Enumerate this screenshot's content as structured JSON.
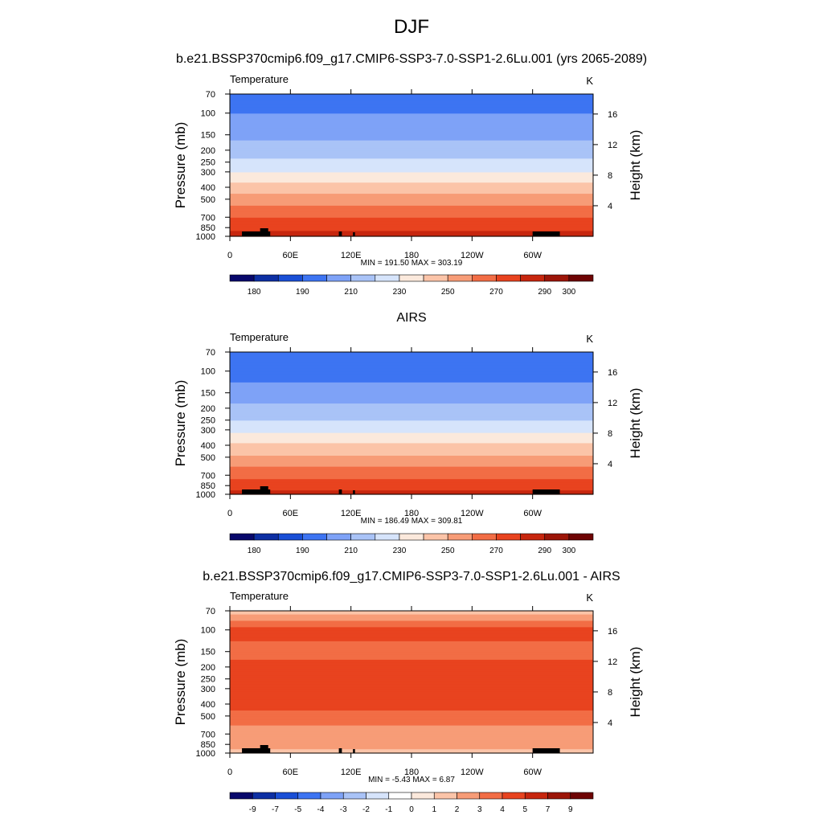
{
  "figure": {
    "title": "DJF"
  },
  "panels": [
    {
      "id": "model",
      "title": "b.e21.BSSP370cmip6.f09_g17.CMIP6-SSP3-7.0-SSP1-2.6Lu.001 (yrs 2065-2089)",
      "left_label": "Temperature",
      "right_label": "K",
      "stats": "MIN = 191.50  MAX = 303.19"
    },
    {
      "id": "obs",
      "title": "AIRS",
      "left_label": "Temperature",
      "right_label": "K",
      "stats": "MIN = 186.49  MAX = 309.81"
    },
    {
      "id": "diff",
      "title": "b.e21.BSSP370cmip6.f09_g17.CMIP6-SSP3-7.0-SSP1-2.6Lu.001 - AIRS",
      "left_label": "Temperature",
      "right_label": "K",
      "stats": "MIN =  -5.43  MAX =  6.87"
    }
  ],
  "chart_data": [
    {
      "type": "heatmap",
      "panel": "model",
      "title": "b.e21.BSSP370cmip6.f09_g17.CMIP6-SSP3-7.0-SSP1-2.6Lu.001 (yrs 2065-2089)",
      "xlabel": "",
      "ylabel": "Pressure (mb)",
      "y2label": "Height (km)",
      "xticks": [
        "0",
        "60E",
        "120E",
        "180",
        "120W",
        "60W"
      ],
      "yticks": [
        "70",
        "100",
        "150",
        "200",
        "250",
        "300",
        "400",
        "500",
        "700",
        "850",
        "1000"
      ],
      "y2ticks": [
        "4",
        "8",
        "12",
        "16"
      ],
      "y_scale": "log pressure",
      "ylim": [
        1000,
        70
      ],
      "min": 191.5,
      "max": 303.19,
      "colorbar": {
        "labels": [
          "180",
          "190",
          "210",
          "230",
          "250",
          "270",
          "290",
          "300"
        ],
        "colors": [
          "#08086b",
          "#0d2fa3",
          "#1a4fd6",
          "#3d74f2",
          "#7ea2f7",
          "#a9c3f7",
          "#d6e4fb",
          "#fbe9dc",
          "#fbc4a8",
          "#f79c77",
          "#f26d45",
          "#e8431f",
          "#c7260e",
          "#9c1508",
          "#6e0404"
        ]
      },
      "rows_1000_to_70mb": [
        {
          "pressure": 1000,
          "value": 285
        },
        {
          "pressure": 850,
          "value": 278
        },
        {
          "pressure": 700,
          "value": 270
        },
        {
          "pressure": 500,
          "value": 255
        },
        {
          "pressure": 400,
          "value": 245
        },
        {
          "pressure": 300,
          "value": 230
        },
        {
          "pressure": 250,
          "value": 222
        },
        {
          "pressure": 200,
          "value": 215
        },
        {
          "pressure": 150,
          "value": 208
        },
        {
          "pressure": 100,
          "value": 200
        },
        {
          "pressure": 70,
          "value": 197
        }
      ]
    },
    {
      "type": "heatmap",
      "panel": "obs",
      "title": "AIRS",
      "xlabel": "",
      "ylabel": "Pressure (mb)",
      "y2label": "Height (km)",
      "xticks": [
        "0",
        "60E",
        "120E",
        "180",
        "120W",
        "60W"
      ],
      "yticks": [
        "70",
        "100",
        "150",
        "200",
        "250",
        "300",
        "400",
        "500",
        "700",
        "850",
        "1000"
      ],
      "y2ticks": [
        "4",
        "8",
        "12",
        "16"
      ],
      "y_scale": "log pressure",
      "ylim": [
        1000,
        70
      ],
      "min": 186.49,
      "max": 309.81,
      "colorbar": {
        "labels": [
          "180",
          "190",
          "210",
          "230",
          "250",
          "270",
          "290",
          "300"
        ],
        "colors": [
          "#08086b",
          "#0d2fa3",
          "#1a4fd6",
          "#3d74f2",
          "#7ea2f7",
          "#a9c3f7",
          "#d6e4fb",
          "#fbe9dc",
          "#fbc4a8",
          "#f79c77",
          "#f26d45",
          "#e8431f",
          "#c7260e",
          "#9c1508",
          "#6e0404"
        ]
      },
      "rows_1000_to_70mb": [
        {
          "pressure": 1000,
          "value": 284
        },
        {
          "pressure": 850,
          "value": 276
        },
        {
          "pressure": 700,
          "value": 268
        },
        {
          "pressure": 500,
          "value": 252
        },
        {
          "pressure": 400,
          "value": 242
        },
        {
          "pressure": 300,
          "value": 228
        },
        {
          "pressure": 250,
          "value": 220
        },
        {
          "pressure": 200,
          "value": 212
        },
        {
          "pressure": 150,
          "value": 205
        },
        {
          "pressure": 100,
          "value": 195
        },
        {
          "pressure": 70,
          "value": 198
        }
      ]
    },
    {
      "type": "heatmap",
      "panel": "diff",
      "title": "b.e21.BSSP370cmip6.f09_g17.CMIP6-SSP3-7.0-SSP1-2.6Lu.001 - AIRS",
      "xlabel": "",
      "ylabel": "Pressure (mb)",
      "y2label": "Height (km)",
      "xticks": [
        "0",
        "60E",
        "120E",
        "180",
        "120W",
        "60W"
      ],
      "yticks": [
        "70",
        "100",
        "150",
        "200",
        "250",
        "300",
        "400",
        "500",
        "700",
        "850",
        "1000"
      ],
      "y2ticks": [
        "4",
        "8",
        "12",
        "16"
      ],
      "y_scale": "log pressure",
      "ylim": [
        1000,
        70
      ],
      "min": -5.43,
      "max": 6.87,
      "colorbar": {
        "labels": [
          "-9",
          "-7",
          "-5",
          "-4",
          "-3",
          "-2",
          "-1",
          "0",
          "1",
          "2",
          "3",
          "4",
          "5",
          "7",
          "9"
        ],
        "colors": [
          "#08086b",
          "#0d2fa3",
          "#1a4fd6",
          "#3d74f2",
          "#7ea2f7",
          "#a9c3f7",
          "#d6e4fb",
          "#ffffff",
          "#fbe9dc",
          "#fbc4a8",
          "#f79c77",
          "#f26d45",
          "#e8431f",
          "#c7260e",
          "#9c1508",
          "#6e0404"
        ]
      },
      "rows_1000_to_70mb": [
        {
          "pressure": 1000,
          "value": 1.5
        },
        {
          "pressure": 850,
          "value": 2.5
        },
        {
          "pressure": 700,
          "value": 2.5
        },
        {
          "pressure": 500,
          "value": 3.5
        },
        {
          "pressure": 400,
          "value": 4.5
        },
        {
          "pressure": 300,
          "value": 4.5
        },
        {
          "pressure": 250,
          "value": 4.5
        },
        {
          "pressure": 200,
          "value": 4.5
        },
        {
          "pressure": 150,
          "value": 3.5
        },
        {
          "pressure": 100,
          "value": 4.5
        },
        {
          "pressure": 70,
          "value": 1.5
        }
      ]
    }
  ]
}
